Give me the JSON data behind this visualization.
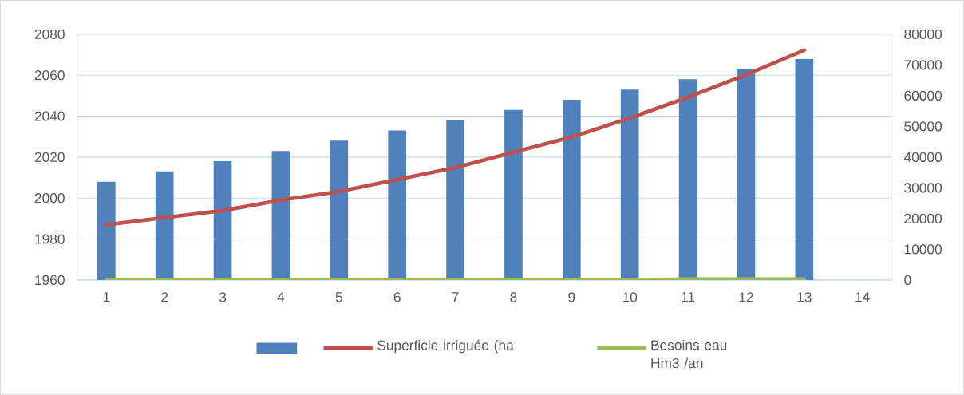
{
  "chart_data": {
    "type": "bar",
    "categories": [
      "1",
      "2",
      "3",
      "4",
      "5",
      "6",
      "7",
      "8",
      "9",
      "10",
      "11",
      "12",
      "13",
      "14"
    ],
    "series": [
      {
        "color": "#4f81bd",
        "values": [
          2008,
          2013,
          2018,
          2023,
          2028,
          2033,
          2038,
          2043,
          2048,
          2053,
          2058,
          2063,
          2068,
          null
        ]
      },
      {
        "type": "line",
        "name": "Superficie irriguée (ha",
        "color": "#c0504d",
        "axis": "y2",
        "values": [
          18000,
          20300,
          22600,
          26000,
          28800,
          32700,
          36600,
          41600,
          46500,
          52700,
          59500,
          66800,
          74800,
          null
        ]
      },
      {
        "type": "line",
        "name": "Besoins eau Hm3 /an",
        "color": "#9bbb59",
        "axis": "y2",
        "values": [
          0,
          0,
          0,
          0,
          0,
          0,
          0,
          0,
          0,
          0,
          300,
          300,
          300,
          null
        ]
      }
    ],
    "ylim": [
      1960,
      2080
    ],
    "yticks": [
      1960,
      1980,
      2000,
      2020,
      2040,
      2060,
      2080
    ],
    "y2lim": [
      0,
      80000
    ],
    "y2ticks": [
      0,
      10000,
      20000,
      30000,
      40000,
      50000,
      60000,
      70000,
      80000
    ],
    "grid": "y",
    "legend": "bottom",
    "marker": "none",
    "line_style": "solid"
  }
}
